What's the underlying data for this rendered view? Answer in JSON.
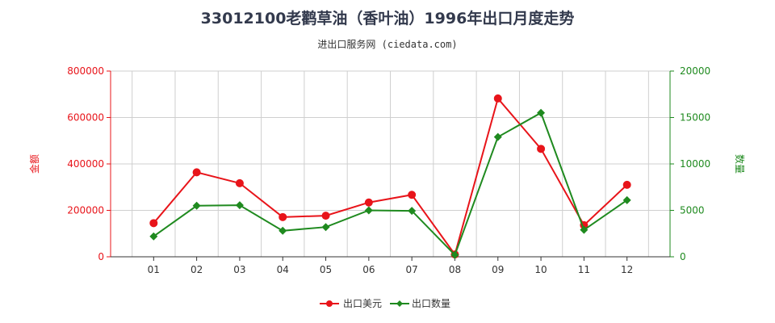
{
  "chart_data": {
    "type": "line",
    "title": "33012100老鹳草油（香叶油）1996年出口月度走势",
    "subtitle": "进出口服务网 (ciedata.com)",
    "categories": [
      "01",
      "02",
      "03",
      "04",
      "05",
      "06",
      "07",
      "08",
      "09",
      "10",
      "11",
      "12"
    ],
    "series": [
      {
        "name": "出口美元",
        "axis": "left",
        "color": "#e8141a",
        "values": [
          145000,
          364000,
          317000,
          171000,
          177000,
          234000,
          267000,
          10000,
          682000,
          465000,
          136000,
          310000
        ]
      },
      {
        "name": "出口数量",
        "axis": "right",
        "color": "#1f8a1f",
        "values": [
          2200,
          5500,
          5550,
          2800,
          3200,
          5000,
          4950,
          200,
          12900,
          15500,
          2900,
          6100
        ]
      }
    ],
    "yleft": {
      "label": "金额",
      "min": 0,
      "max": 800000,
      "ticks": [
        "0",
        "200000",
        "400000",
        "600000",
        "800000"
      ],
      "color": "#e8141a"
    },
    "yright": {
      "label": "数量",
      "min": 0,
      "max": 20000,
      "ticks": [
        "0",
        "5000",
        "10000",
        "15000",
        "20000"
      ],
      "color": "#1f8a1f"
    },
    "grid": true,
    "legend_position": "bottom-center"
  }
}
